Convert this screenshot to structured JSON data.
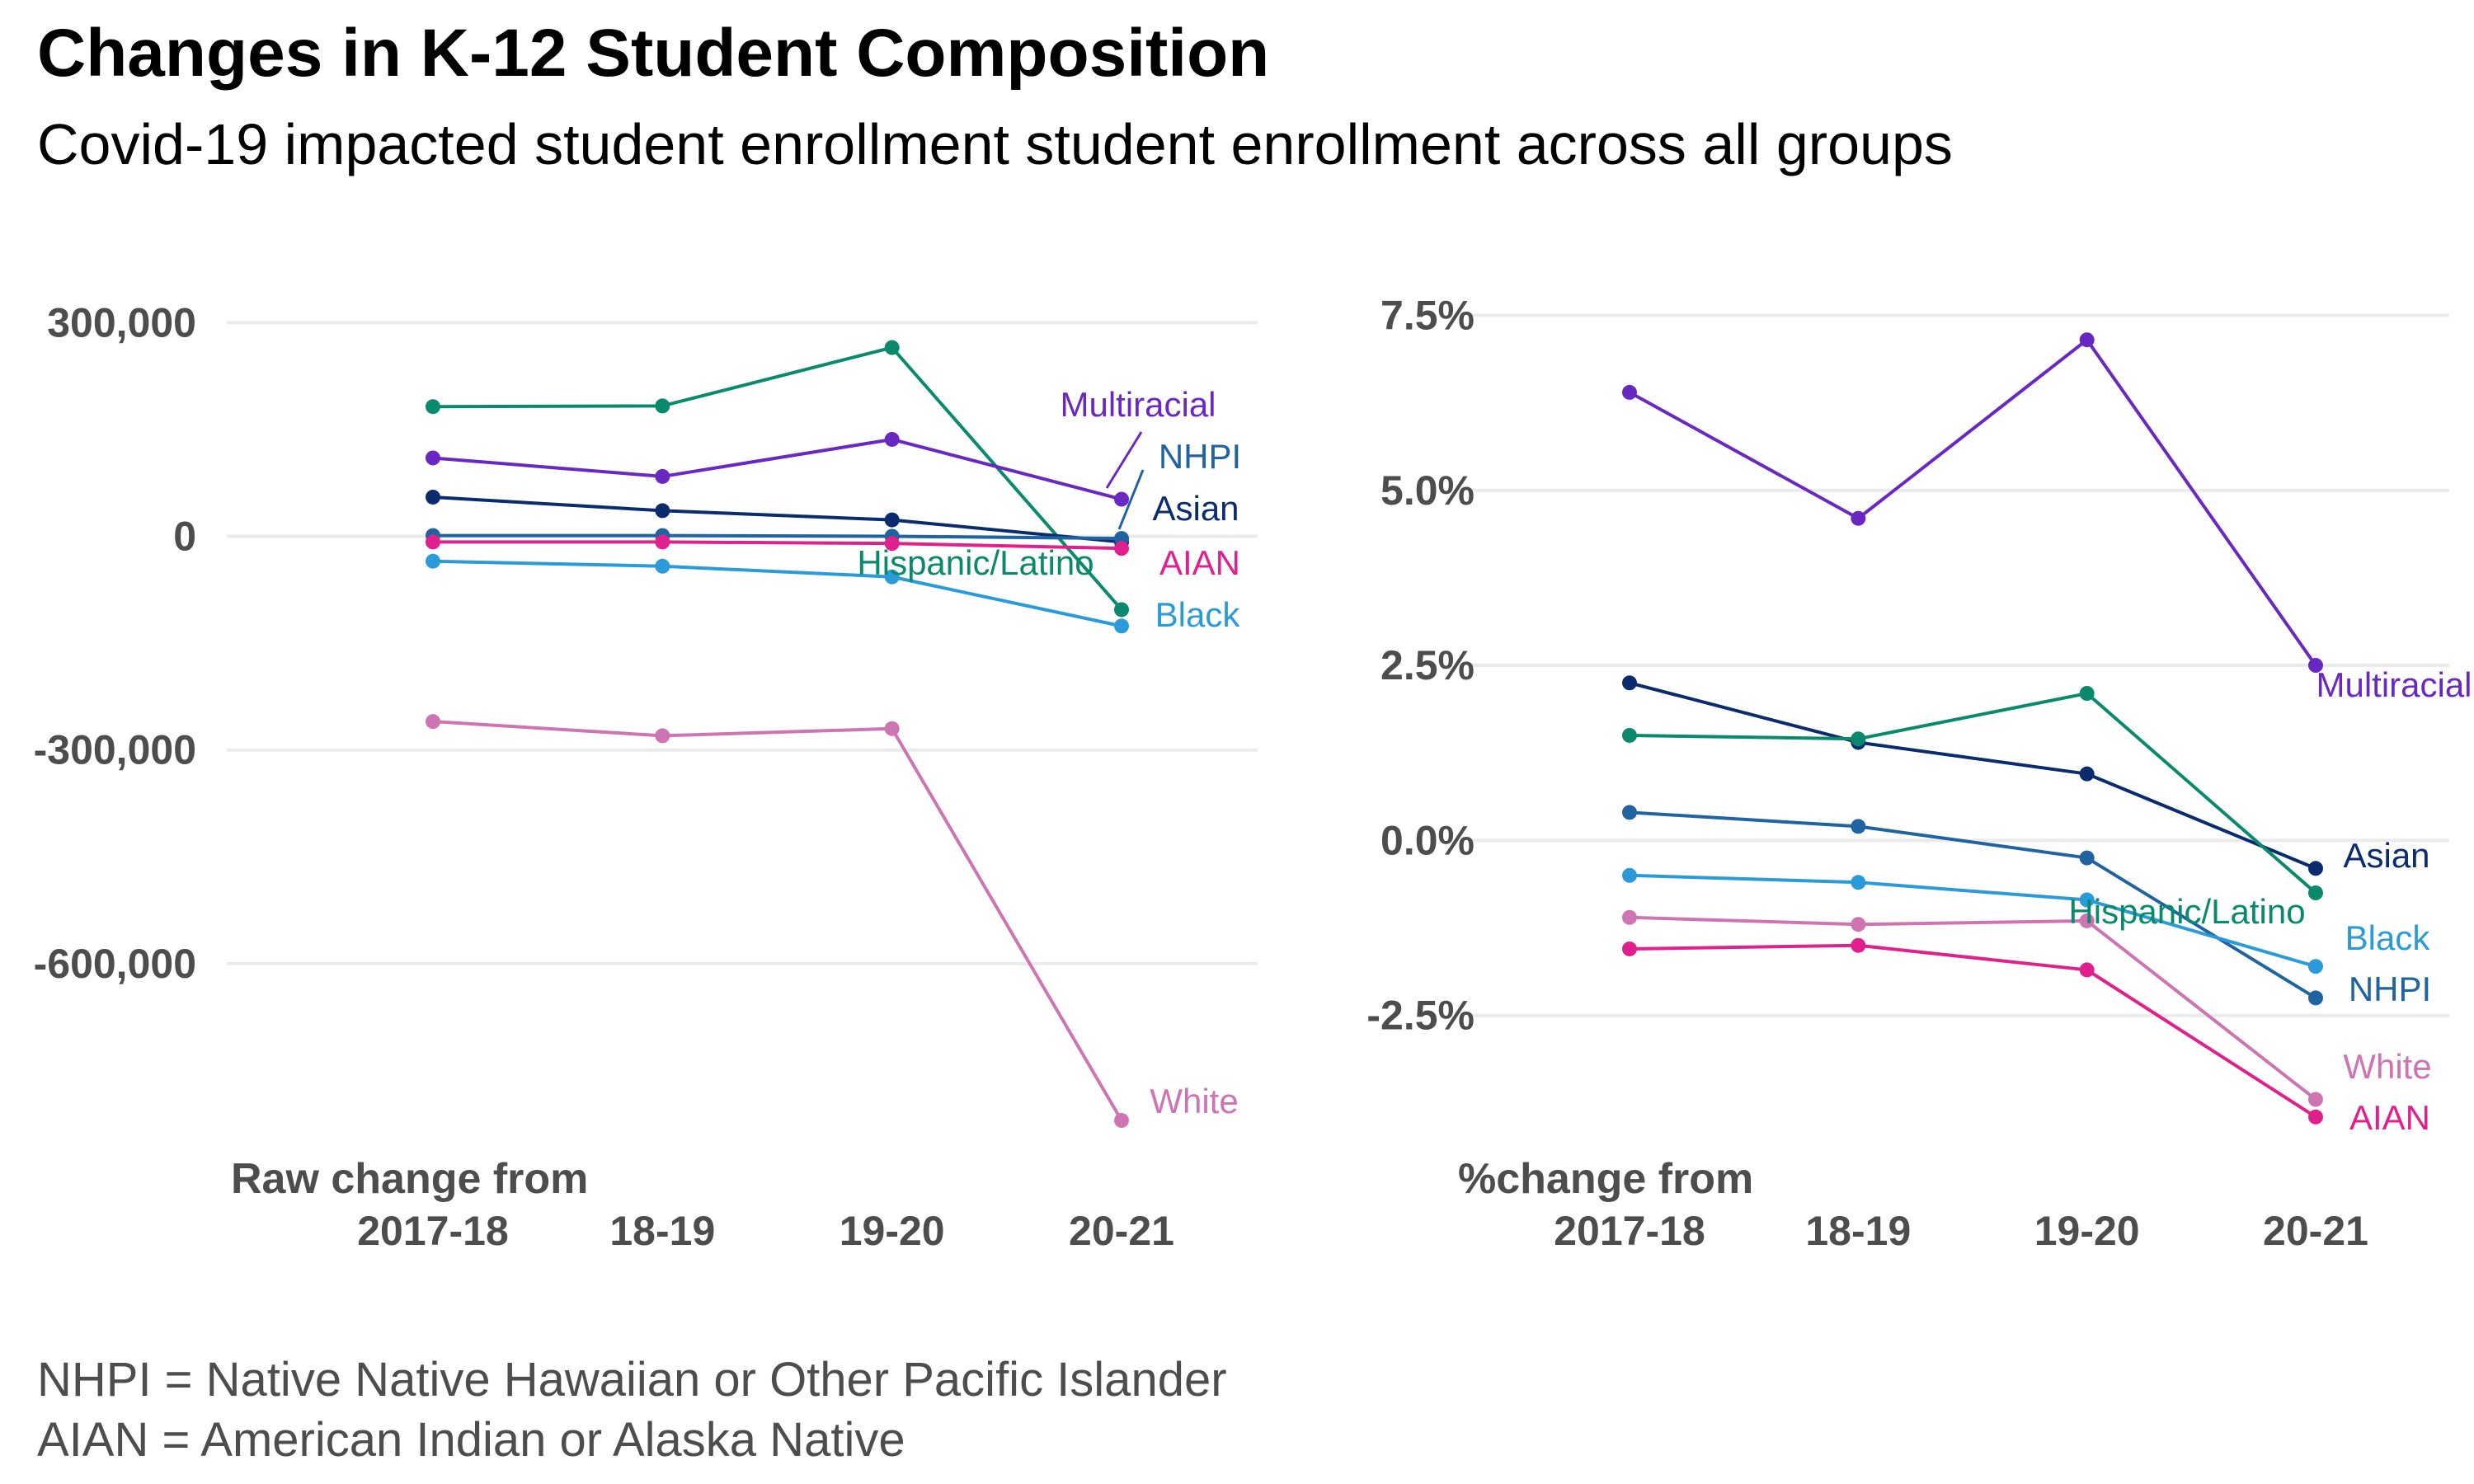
{
  "title": "Changes in K-12 Student Composition",
  "subtitle": "Covid-19 impacted student enrollment student enrollment across all groups",
  "captions": [
    "NHPI = Native Native Hawaiian or Other Pacific Islander",
    "AIAN = American Indian or Alaska Native"
  ],
  "colors": {
    "Multiracial": "#6a28c3",
    "NHPI": "#1f63a0",
    "Asian": "#0a2b6e",
    "AIAN": "#e0208c",
    "Hispanic/Latino": "#0a8a6c",
    "Black": "#2a9bd8",
    "White": "#cf74b3"
  },
  "chart_data": [
    {
      "type": "line",
      "xlabel": "Raw change from",
      "categories": [
        "2017-18",
        "18-19",
        "19-20",
        "20-21"
      ],
      "ylim": [
        -820000,
        320000
      ],
      "yticks": [
        300000,
        0,
        -300000,
        -600000
      ],
      "ytick_labels": [
        "300,000",
        "0",
        "-300,000",
        "-600,000"
      ],
      "grid": true,
      "series": [
        {
          "name": "Hispanic/Latino",
          "values": [
            182000,
            183000,
            265000,
            -103000
          ]
        },
        {
          "name": "Multiracial",
          "values": [
            110000,
            84000,
            136000,
            52000
          ]
        },
        {
          "name": "Asian",
          "values": [
            55000,
            36000,
            23000,
            -8000
          ]
        },
        {
          "name": "NHPI",
          "values": [
            1000,
            1000,
            0,
            -3000
          ]
        },
        {
          "name": "AIAN",
          "values": [
            -8000,
            -8000,
            -10000,
            -17000
          ]
        },
        {
          "name": "Black",
          "values": [
            -35000,
            -42000,
            -57000,
            -126000
          ]
        },
        {
          "name": "White",
          "values": [
            -260000,
            -280000,
            -270000,
            -820000
          ]
        }
      ]
    },
    {
      "type": "line",
      "xlabel": "%change from",
      "categories": [
        "2017-18",
        "18-19",
        "19-20",
        "20-21"
      ],
      "ylim": [
        -4.0,
        7.6
      ],
      "yticks": [
        7.5,
        5.0,
        2.5,
        0.0,
        -2.5
      ],
      "ytick_labels": [
        "7.5%",
        "5.0%",
        "2.5%",
        "0.0%",
        "-2.5%"
      ],
      "grid": true,
      "series": [
        {
          "name": "Multiracial",
          "values": [
            6.4,
            4.6,
            7.15,
            2.5
          ]
        },
        {
          "name": "Asian",
          "values": [
            2.25,
            1.4,
            0.95,
            -0.4
          ]
        },
        {
          "name": "Hispanic/Latino",
          "values": [
            1.5,
            1.45,
            2.1,
            -0.75
          ]
        },
        {
          "name": "NHPI",
          "values": [
            0.4,
            0.2,
            -0.25,
            -2.25
          ]
        },
        {
          "name": "Black",
          "values": [
            -0.5,
            -0.6,
            -0.85,
            -1.8
          ]
        },
        {
          "name": "White",
          "values": [
            -1.1,
            -1.2,
            -1.15,
            -3.7
          ]
        },
        {
          "name": "AIAN",
          "values": [
            -1.55,
            -1.5,
            -1.85,
            -3.95
          ]
        }
      ]
    }
  ]
}
